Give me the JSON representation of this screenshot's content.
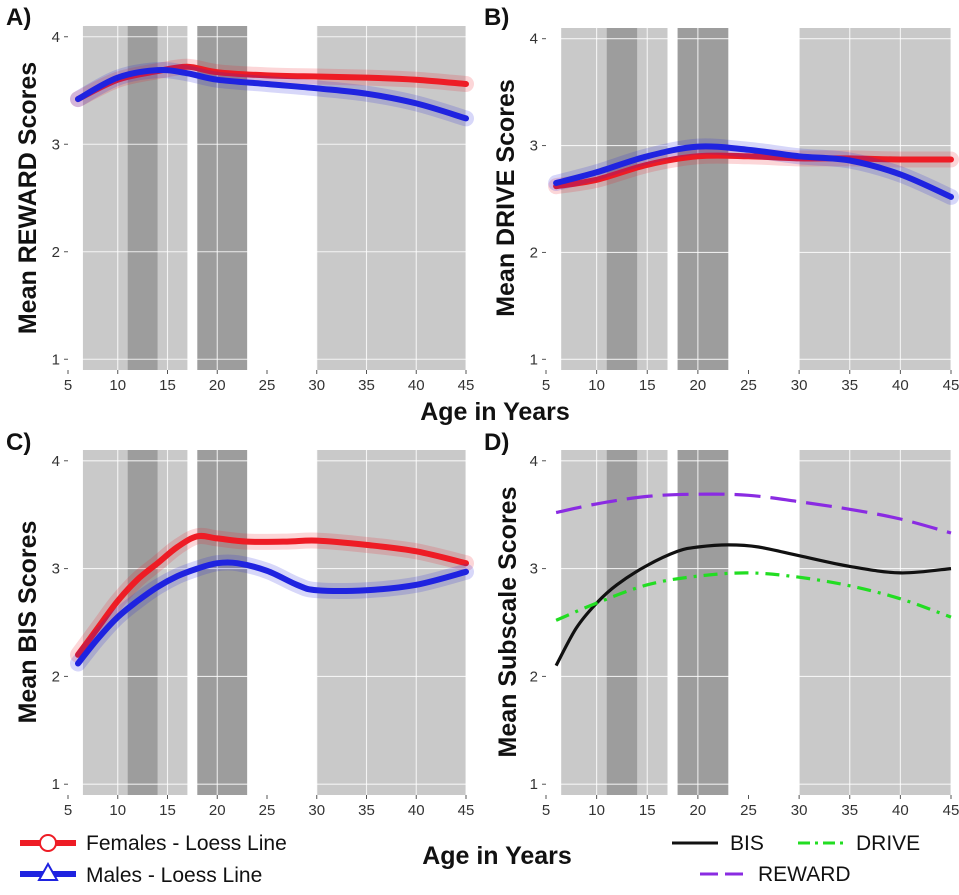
{
  "chart_data": [
    {
      "type": "scatter",
      "panel_label": "A)",
      "ylabel": "Mean REWARD Scores",
      "xlabel": "Age in Years",
      "xlim": [
        5,
        45
      ],
      "ylim": [
        0.9,
        4.1
      ],
      "x_ticks": [
        5,
        10,
        15,
        20,
        25,
        30,
        35,
        40,
        45
      ],
      "y_ticks": [
        1,
        2,
        3,
        4
      ],
      "age_bands": [
        {
          "from": 6.5,
          "to": 17
        },
        {
          "from": 18,
          "to": 23
        },
        {
          "from": 30,
          "to": 45
        }
      ],
      "dark_bands": [
        {
          "from": 11,
          "to": 14
        },
        {
          "from": 18,
          "to": 23
        }
      ],
      "series": [
        {
          "name": "Females - Loess Line",
          "color": "#ee1c25",
          "x": [
            6,
            10,
            14,
            17,
            20,
            25,
            30,
            35,
            40,
            45
          ],
          "y": [
            3.42,
            3.6,
            3.68,
            3.72,
            3.67,
            3.64,
            3.63,
            3.62,
            3.6,
            3.56
          ]
        },
        {
          "name": "Males - Loess Line",
          "color": "#1f23e0",
          "x": [
            6,
            10,
            14,
            17,
            20,
            25,
            30,
            35,
            40,
            45
          ],
          "y": [
            3.42,
            3.62,
            3.69,
            3.66,
            3.6,
            3.56,
            3.52,
            3.47,
            3.38,
            3.24
          ]
        }
      ]
    },
    {
      "type": "scatter",
      "panel_label": "B)",
      "ylabel": "Mean DRIVE Scores",
      "xlabel": "Age in Years",
      "xlim": [
        5,
        45
      ],
      "ylim": [
        0.9,
        4.1
      ],
      "x_ticks": [
        5,
        10,
        15,
        20,
        25,
        30,
        35,
        40,
        45
      ],
      "y_ticks": [
        1,
        2,
        3,
        4
      ],
      "age_bands": [
        {
          "from": 6.5,
          "to": 17
        },
        {
          "from": 18,
          "to": 23
        },
        {
          "from": 30,
          "to": 45
        }
      ],
      "dark_bands": [
        {
          "from": 11,
          "to": 14
        },
        {
          "from": 18,
          "to": 23
        }
      ],
      "series": [
        {
          "name": "Females - Loess Line",
          "color": "#ee1c25",
          "x": [
            6,
            10,
            15,
            20,
            25,
            30,
            35,
            40,
            45
          ],
          "y": [
            2.62,
            2.68,
            2.82,
            2.9,
            2.9,
            2.88,
            2.88,
            2.87,
            2.87
          ]
        },
        {
          "name": "Males - Loess Line",
          "color": "#1f23e0",
          "x": [
            6,
            10,
            15,
            20,
            25,
            30,
            35,
            40,
            45
          ],
          "y": [
            2.65,
            2.75,
            2.9,
            2.99,
            2.96,
            2.9,
            2.86,
            2.73,
            2.52
          ]
        }
      ]
    },
    {
      "type": "scatter",
      "panel_label": "C)",
      "ylabel": "Mean BIS Scores",
      "xlabel": "Age in Years",
      "xlim": [
        5,
        45
      ],
      "ylim": [
        0.9,
        4.1
      ],
      "x_ticks": [
        5,
        10,
        15,
        20,
        25,
        30,
        35,
        40,
        45
      ],
      "y_ticks": [
        1,
        2,
        3,
        4
      ],
      "age_bands": [
        {
          "from": 6.5,
          "to": 17
        },
        {
          "from": 18,
          "to": 23
        },
        {
          "from": 30,
          "to": 45
        }
      ],
      "dark_bands": [
        {
          "from": 11,
          "to": 14
        },
        {
          "from": 18,
          "to": 23
        }
      ],
      "series": [
        {
          "name": "Females - Loess Line",
          "color": "#ee1c25",
          "x": [
            6,
            8,
            10,
            12,
            14,
            16,
            18,
            20,
            23,
            27,
            30,
            35,
            40,
            45
          ],
          "y": [
            2.2,
            2.45,
            2.7,
            2.9,
            3.05,
            3.2,
            3.3,
            3.28,
            3.25,
            3.25,
            3.26,
            3.22,
            3.16,
            3.05
          ]
        },
        {
          "name": "Males - Loess Line",
          "color": "#1f23e0",
          "x": [
            6,
            8,
            10,
            12,
            14,
            16,
            18,
            20,
            22,
            25,
            28,
            30,
            35,
            40,
            45
          ],
          "y": [
            2.12,
            2.35,
            2.55,
            2.7,
            2.83,
            2.93,
            3.0,
            3.05,
            3.05,
            2.98,
            2.85,
            2.8,
            2.8,
            2.85,
            2.97
          ]
        }
      ]
    },
    {
      "type": "line",
      "panel_label": "D)",
      "ylabel": "Mean Subscale Scores",
      "xlabel": "Age in Years",
      "xlim": [
        5,
        45
      ],
      "ylim": [
        0.9,
        4.1
      ],
      "x_ticks": [
        5,
        10,
        15,
        20,
        25,
        30,
        35,
        40,
        45
      ],
      "y_ticks": [
        1,
        2,
        3,
        4
      ],
      "age_bands": [
        {
          "from": 6.5,
          "to": 17
        },
        {
          "from": 18,
          "to": 23
        },
        {
          "from": 30,
          "to": 45
        }
      ],
      "dark_bands": [
        {
          "from": 11,
          "to": 14
        },
        {
          "from": 18,
          "to": 23
        }
      ],
      "series": [
        {
          "name": "BIS",
          "color": "#111111",
          "dash": "solid",
          "x": [
            6,
            8,
            10,
            12,
            15,
            18,
            20,
            23,
            26,
            30,
            35,
            40,
            45
          ],
          "y": [
            2.1,
            2.45,
            2.68,
            2.85,
            3.03,
            3.16,
            3.2,
            3.22,
            3.2,
            3.12,
            3.02,
            2.96,
            3.0
          ]
        },
        {
          "name": "DRIVE",
          "color": "#22dd22",
          "dash": "dashdot",
          "x": [
            6,
            10,
            15,
            20,
            25,
            30,
            35,
            40,
            45
          ],
          "y": [
            2.52,
            2.68,
            2.85,
            2.93,
            2.96,
            2.92,
            2.84,
            2.72,
            2.55
          ]
        },
        {
          "name": "REWARD",
          "color": "#8a2be2",
          "dash": "longdash",
          "x": [
            6,
            10,
            15,
            20,
            25,
            30,
            35,
            40,
            45
          ],
          "y": [
            3.52,
            3.6,
            3.67,
            3.69,
            3.68,
            3.62,
            3.55,
            3.46,
            3.33
          ]
        }
      ]
    }
  ],
  "shared_xlabel": "Age in Years",
  "legend_left": [
    {
      "marker": "circle",
      "label": "Females - Loess Line",
      "color": "#ee1c25"
    },
    {
      "marker": "triangle",
      "label": "Males - Loess Line",
      "color": "#1f23e0"
    }
  ],
  "legend_right": [
    {
      "label": "BIS",
      "color": "#111111",
      "dash": "solid"
    },
    {
      "label": "DRIVE",
      "color": "#22dd22",
      "dash": "dashdot"
    },
    {
      "label": "REWARD",
      "color": "#8a2be2",
      "dash": "longdash"
    }
  ]
}
